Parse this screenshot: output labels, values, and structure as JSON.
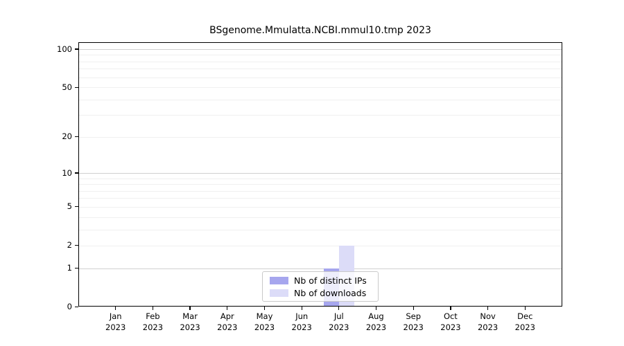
{
  "chart_data": {
    "type": "bar",
    "title": "BSgenome.Mmulatta.NCBI.mmul10.tmp 2023",
    "categories": [
      "Jan 2023",
      "Feb 2023",
      "Mar 2023",
      "Apr 2023",
      "May 2023",
      "Jun 2023",
      "Jul 2023",
      "Aug 2023",
      "Sep 2023",
      "Oct 2023",
      "Nov 2023",
      "Dec 2023"
    ],
    "series": [
      {
        "name": "Nb of distinct IPs",
        "color": "#a6a6ee",
        "values": [
          0,
          0,
          0,
          0,
          0,
          0,
          1,
          0,
          0,
          0,
          0,
          0
        ]
      },
      {
        "name": "Nb of downloads",
        "color": "#dcdcf8",
        "values": [
          0,
          0,
          0,
          0,
          0,
          0,
          2,
          0,
          0,
          0,
          0,
          0
        ]
      }
    ],
    "y_scale": "log1p",
    "ylim": [
      0,
      100
    ],
    "y_ticks": [
      0,
      1,
      2,
      5,
      10,
      20,
      50,
      100
    ],
    "grid_values": [
      1,
      2,
      3,
      4,
      5,
      6,
      7,
      8,
      9,
      10,
      20,
      30,
      40,
      50,
      60,
      70,
      80,
      90,
      100
    ],
    "major_grid_values": [
      1,
      10,
      100
    ],
    "grid_color_major": "#d0d0d0",
    "grid_color_minor": "#f0f0f0",
    "legend_position": "lower center"
  }
}
